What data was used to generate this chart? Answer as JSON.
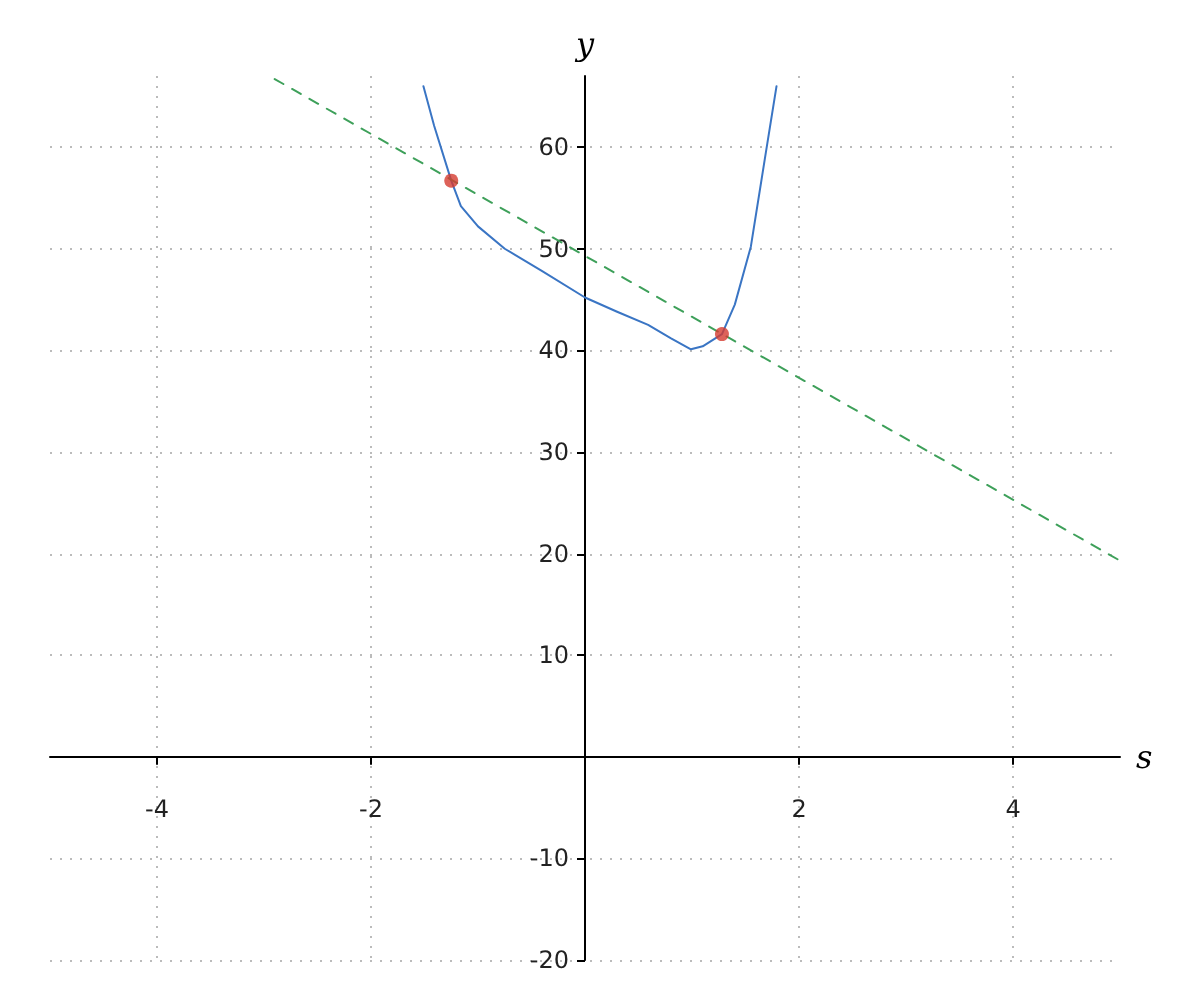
{
  "chart_data": {
    "type": "line",
    "xlabel": "s",
    "ylabel": "y",
    "xlim": [
      -5,
      5
    ],
    "ylim": [
      -20,
      67
    ],
    "xticks": [
      -4,
      -2,
      2,
      4
    ],
    "yticks": [
      -20,
      -10,
      10,
      20,
      30,
      40,
      50,
      60
    ],
    "grid": true,
    "series": [
      {
        "color": "#3a75c4",
        "line_style": "solid",
        "x": [
          -1.51,
          -1.41,
          -1.25,
          -1.16,
          -1.0,
          -0.75,
          -0.4,
          0,
          0.3,
          0.59,
          0.8,
          0.99,
          1.1,
          1.28,
          1.4,
          1.55,
          1.68,
          1.79
        ],
        "values": [
          66,
          62.1,
          56.7,
          54.2,
          52.2,
          50,
          47.8,
          45.2,
          43.8,
          42.5,
          41.2,
          40.1,
          40.4,
          41.6,
          44.5,
          50.2,
          58.8,
          66
        ]
      },
      {
        "color": "#3ea05a",
        "line_style": "dashed",
        "x": [
          -2.9,
          5
        ],
        "values": [
          66.7,
          19.3
        ]
      },
      {
        "type": "scatter",
        "color": "#d43b2f",
        "marker": "circle",
        "x": [
          -1.25,
          1.28
        ],
        "values": [
          56.7,
          41.6
        ]
      }
    ]
  }
}
